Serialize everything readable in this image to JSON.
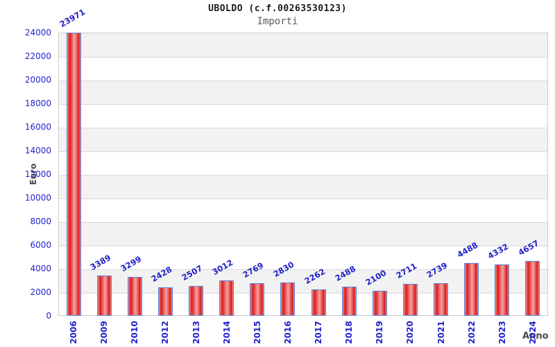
{
  "chart_data": {
    "type": "bar",
    "title": "UBOLDO (c.f.00263530123)",
    "subtitle": "Importi",
    "xlabel": "Anno",
    "ylabel": "Euro",
    "categories": [
      "2006",
      "2009",
      "2010",
      "2012",
      "2013",
      "2014",
      "2015",
      "2016",
      "2017",
      "2018",
      "2019",
      "2020",
      "2021",
      "2022",
      "2023",
      "2024"
    ],
    "values": [
      23971,
      3389,
      3299,
      2428,
      2507,
      3012,
      2769,
      2830,
      2262,
      2488,
      2100,
      2711,
      2739,
      4488,
      4332,
      4657
    ],
    "ylim": [
      0,
      24000
    ],
    "ytick_step": 2000,
    "grid": "horizontal-bands-alternating",
    "legend": "none",
    "value_label_rotation_deg": -30,
    "x_label_rotation_deg": -90
  },
  "colors": {
    "label_blue": "#2222cc",
    "bar_border": "#5b86e0",
    "bar_red_dark": "#da1b1b",
    "bar_red_mid": "#f7a3a3",
    "bar_red_edge": "#ef9090",
    "band_gray": "#f2f2f2",
    "gridline": "#d9d9d9",
    "plot_border": "#cccccc",
    "title_color": "#1a1a1a",
    "subtitle_color": "#5a5a5a",
    "axis_label_color": "#4a4a4a",
    "background": "#ffffff"
  }
}
